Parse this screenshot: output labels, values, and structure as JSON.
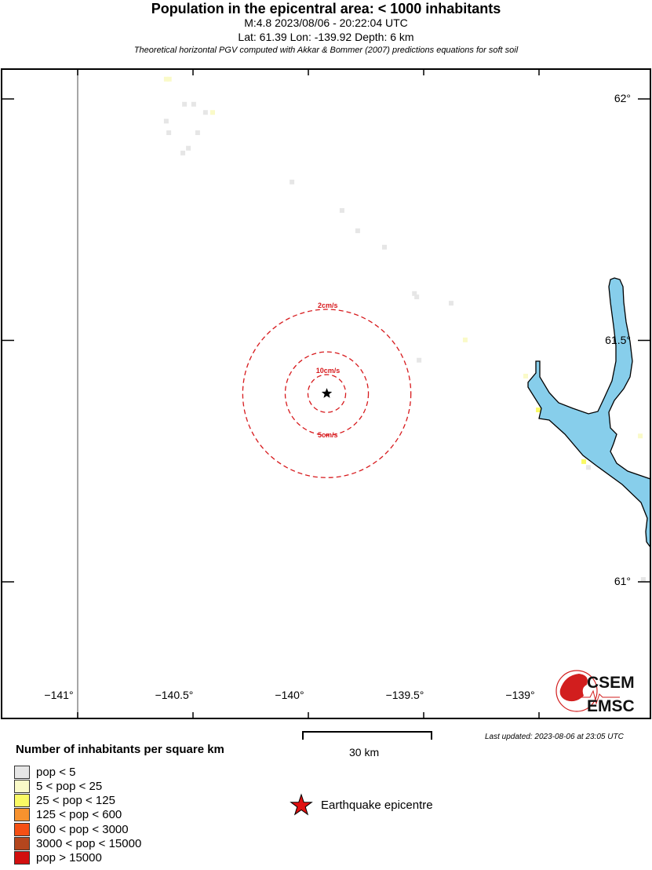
{
  "header": {
    "title": "Population in the epicentral area: < 1000 inhabitants",
    "event_line": "M:4.8 2023/08/06 - 20:22:04 UTC",
    "location_line": "Lat: 61.39 Lon: -139.92 Depth: 6 km",
    "note": "Theoretical horizontal PGV computed with Akkar & Bommer (2007) predictions equations for soft soil"
  },
  "map": {
    "epicenter": {
      "lat": 61.39,
      "lon": -139.92,
      "magnitude": 4.8,
      "depth_km": 6
    },
    "lon_ticks": [
      {
        "value": -141,
        "label": "−141°"
      },
      {
        "value": -140.5,
        "label": "−140.5°"
      },
      {
        "value": -140,
        "label": "−140°"
      },
      {
        "value": -139.5,
        "label": "−139.5°"
      },
      {
        "value": -139,
        "label": "−139°"
      }
    ],
    "lat_ticks": [
      {
        "value": 62,
        "label": "62°"
      },
      {
        "value": 61.5,
        "label": "61.5°"
      },
      {
        "value": 61,
        "label": "61°"
      }
    ],
    "pgv_contours": [
      {
        "label": "10cm/s",
        "radius_km": 4.4
      },
      {
        "label": "5cm/s",
        "radius_km": 9.7
      },
      {
        "label": "2cm/s",
        "radius_km": 19.6
      }
    ],
    "population_cells": [
      {
        "lon": -140.616,
        "lat": 62.041,
        "class": 1
      },
      {
        "lon": -140.603,
        "lat": 62.041,
        "class": 1
      },
      {
        "lon": -140.537,
        "lat": 61.989,
        "class": 0
      },
      {
        "lon": -140.497,
        "lat": 61.989,
        "class": 0
      },
      {
        "lon": -140.446,
        "lat": 61.972,
        "class": 0
      },
      {
        "lon": -140.415,
        "lat": 61.972,
        "class": 1
      },
      {
        "lon": -140.616,
        "lat": 61.954,
        "class": 0
      },
      {
        "lon": -140.605,
        "lat": 61.93,
        "class": 0
      },
      {
        "lon": -140.48,
        "lat": 61.93,
        "class": 0
      },
      {
        "lon": -140.52,
        "lat": 61.898,
        "class": 0
      },
      {
        "lon": -140.544,
        "lat": 61.888,
        "class": 0
      },
      {
        "lon": -140.071,
        "lat": 61.828,
        "class": 0
      },
      {
        "lon": -139.854,
        "lat": 61.769,
        "class": 0
      },
      {
        "lon": -139.786,
        "lat": 61.727,
        "class": 0
      },
      {
        "lon": -139.67,
        "lat": 61.693,
        "class": 0
      },
      {
        "lon": -139.54,
        "lat": 61.597,
        "class": 0
      },
      {
        "lon": -139.53,
        "lat": 61.59,
        "class": 0
      },
      {
        "lon": -139.381,
        "lat": 61.577,
        "class": 0
      },
      {
        "lon": -139.32,
        "lat": 61.501,
        "class": 1
      },
      {
        "lon": -139.52,
        "lat": 61.459,
        "class": 0
      },
      {
        "lon": -139.058,
        "lat": 61.426,
        "class": 1
      },
      {
        "lon": -139.003,
        "lat": 61.356,
        "class": 2
      },
      {
        "lon": -138.806,
        "lat": 61.249,
        "class": 2
      },
      {
        "lon": -138.786,
        "lat": 61.237,
        "class": 0
      },
      {
        "lon": -138.561,
        "lat": 61.302,
        "class": 1
      },
      {
        "lon": -138.548,
        "lat": 61.005,
        "class": 0
      }
    ],
    "water_color": "#87ceeb",
    "contour_color": "#d7191c",
    "logo": {
      "top": "CSEM",
      "bottom": "EMSC"
    }
  },
  "scale_bar": {
    "label": "30 km",
    "km": 30
  },
  "last_updated": "Last updated: 2023-08-06 at 23:05 UTC",
  "legend": {
    "title": "Number of inhabitants per square km",
    "items": [
      {
        "label": "pop < 5",
        "color": "#e6e6e6"
      },
      {
        "label": "5 < pop < 25",
        "color": "#fafac8"
      },
      {
        "label": "25 < pop < 125",
        "color": "#fafa64"
      },
      {
        "label": "125 < pop < 600",
        "color": "#f7922e"
      },
      {
        "label": "600 < pop < 3000",
        "color": "#f55014"
      },
      {
        "label": "3000 < pop < 15000",
        "color": "#b4461e"
      },
      {
        "label": "pop > 15000",
        "color": "#d20f0f"
      }
    ],
    "epicentre_label": "Earthquake epicentre"
  }
}
